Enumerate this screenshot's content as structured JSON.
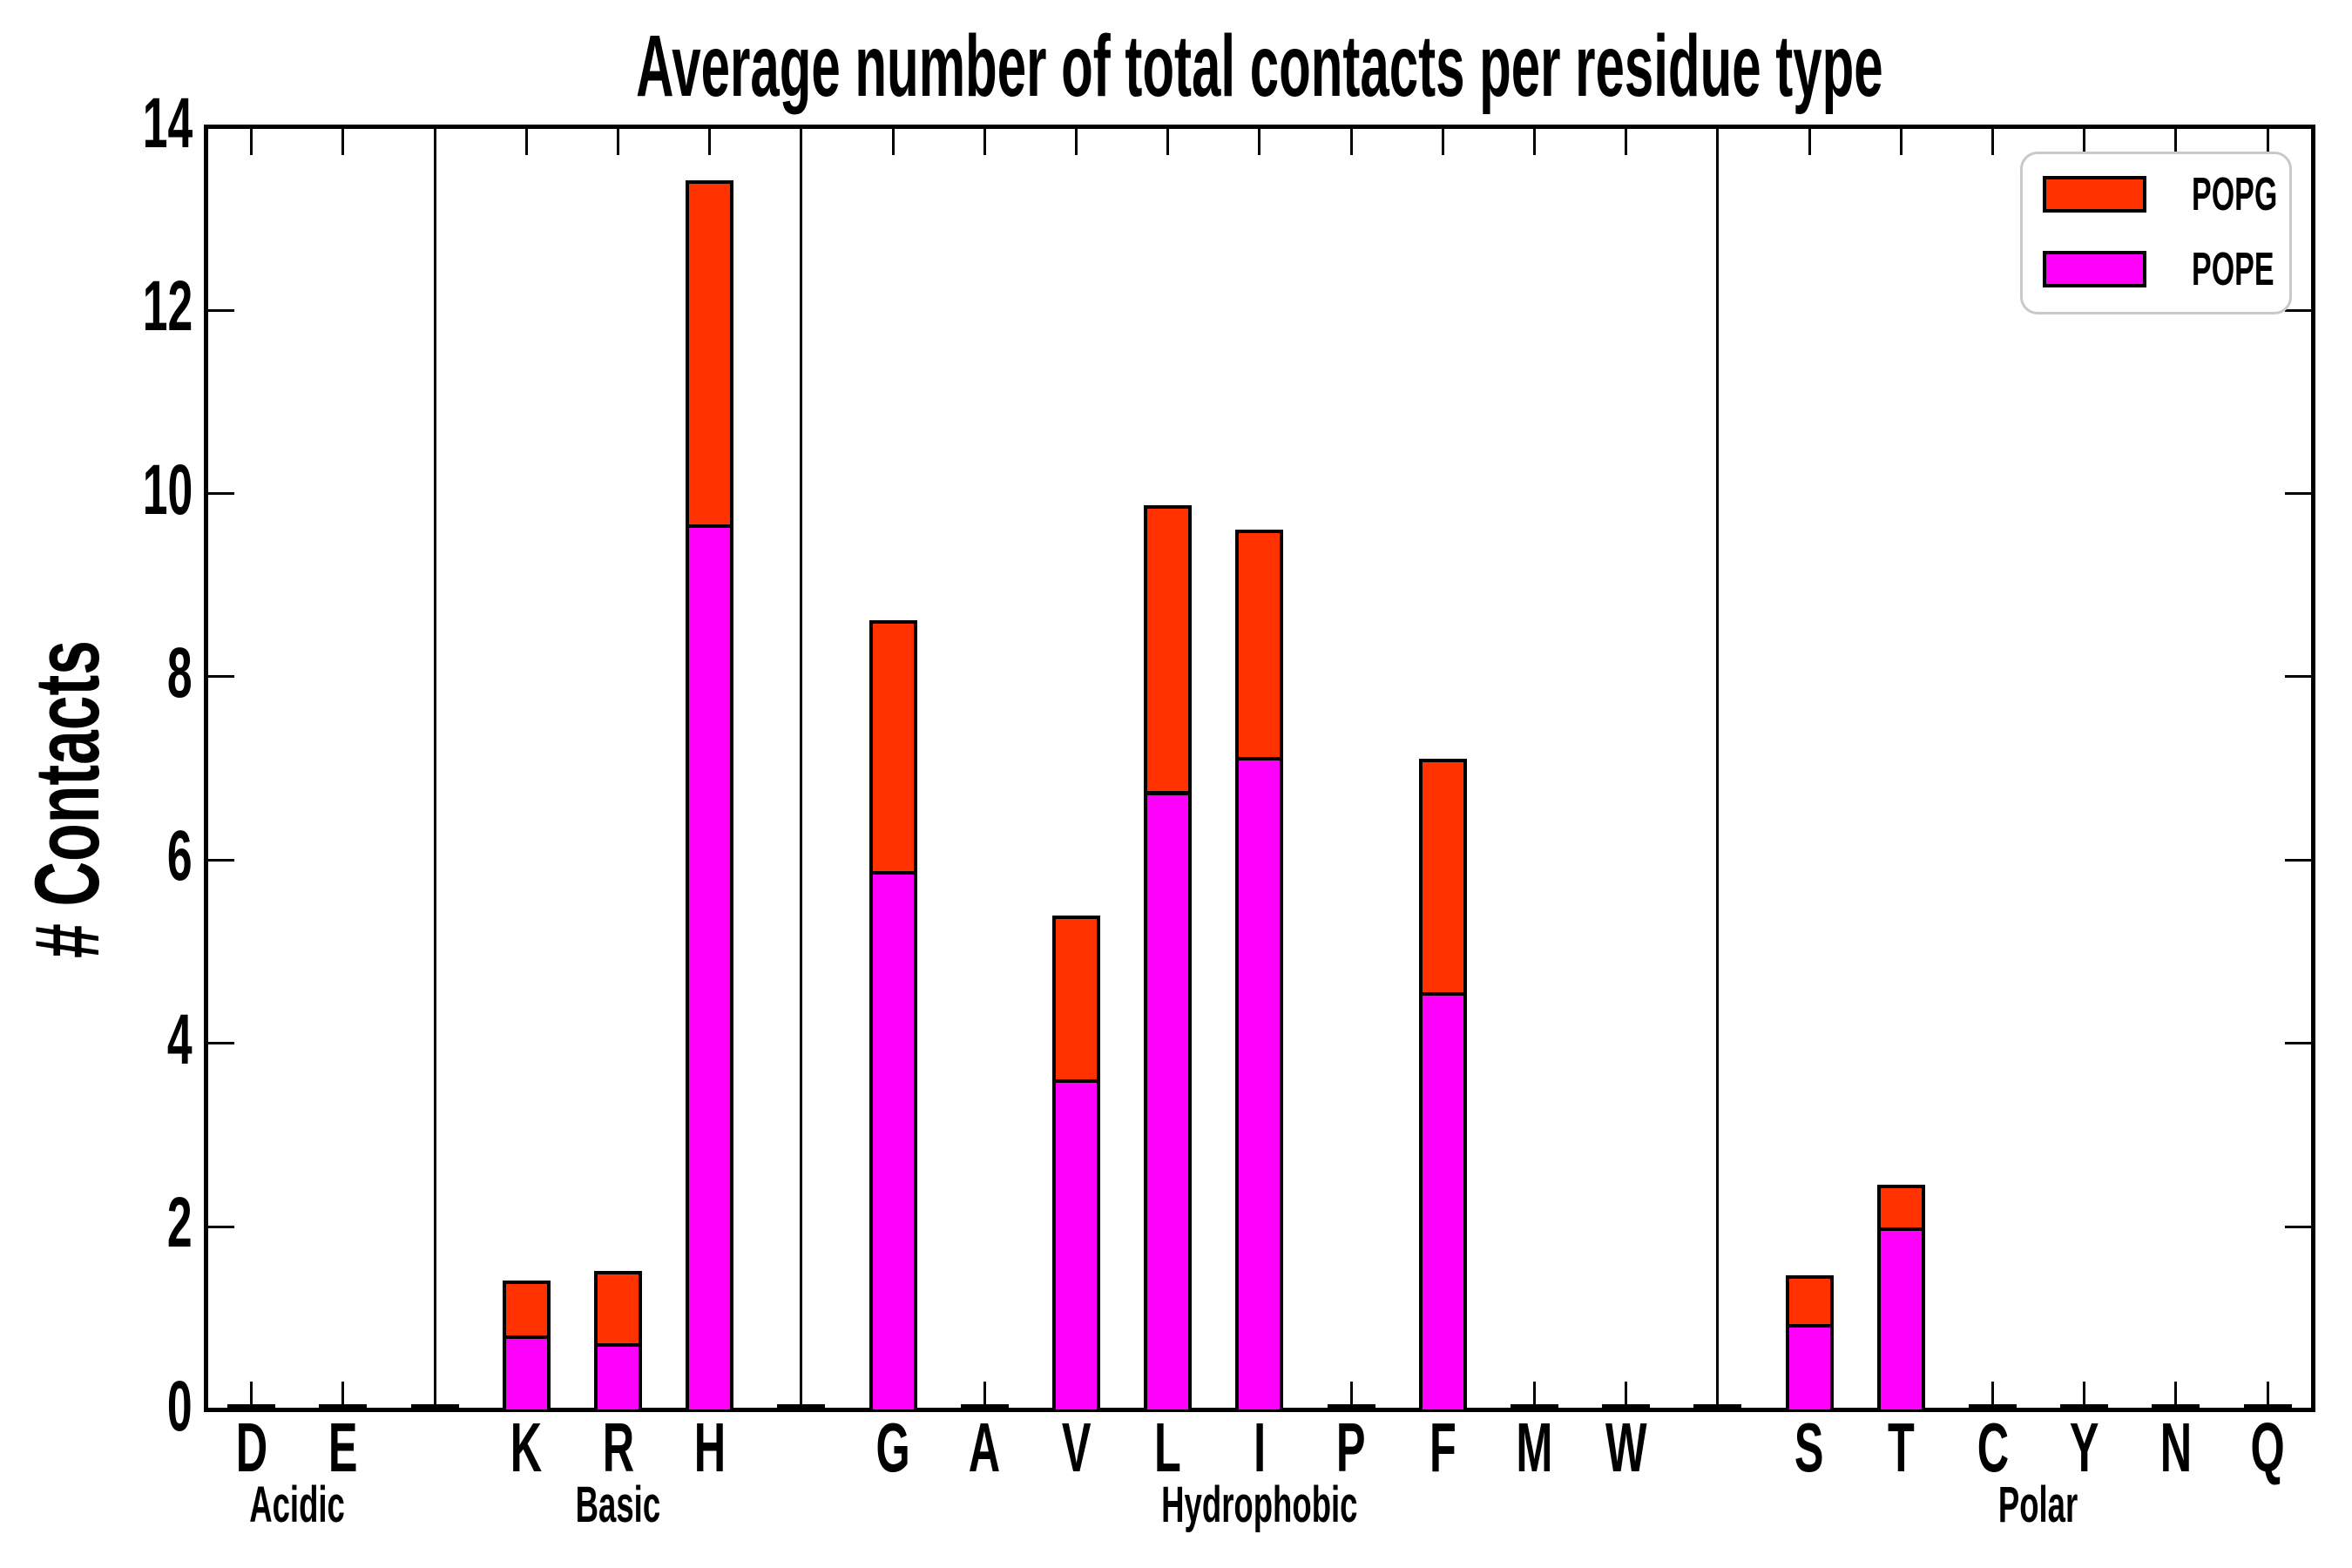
{
  "title": "Average number of total contacts per residue type",
  "y_axis": {
    "label": "# Contacts"
  },
  "legend": {
    "items": [
      {
        "label": "POPG",
        "color": "#FF3200"
      },
      {
        "label": "POPE",
        "color": "#FF00FA"
      }
    ]
  },
  "chart_data": {
    "type": "bar",
    "stacked": true,
    "title": "Average number of total contacts per residue type",
    "xlabel": "",
    "ylabel": "# Contacts",
    "ylim": [
      0,
      14
    ],
    "yticks": [
      0,
      2,
      4,
      6,
      8,
      10,
      12,
      14
    ],
    "grid": false,
    "legend_position": "upper right",
    "group_separators": true,
    "groups": [
      {
        "label": "Acidic",
        "categories": [
          "D",
          "E"
        ]
      },
      {
        "label": "Basic",
        "categories": [
          "K",
          "R",
          "H"
        ]
      },
      {
        "label": "Hydrophobic",
        "categories": [
          "G",
          "A",
          "V",
          "L",
          "I",
          "P",
          "F",
          "M",
          "W"
        ]
      },
      {
        "label": "Polar",
        "categories": [
          "S",
          "T",
          "C",
          "Y",
          "N",
          "Q"
        ]
      }
    ],
    "categories": [
      "D",
      "E",
      "K",
      "R",
      "H",
      "G",
      "A",
      "V",
      "L",
      "I",
      "P",
      "F",
      "M",
      "W",
      "S",
      "T",
      "C",
      "Y",
      "N",
      "Q"
    ],
    "series": [
      {
        "name": "POPE",
        "color": "#FF00FA",
        "values": [
          0,
          0,
          0.79,
          0.71,
          9.64,
          5.86,
          0,
          3.59,
          6.73,
          7.11,
          0,
          4.54,
          0,
          0,
          0.92,
          1.97,
          0,
          0,
          0,
          0
        ]
      },
      {
        "name": "POPG",
        "color": "#FF3200",
        "values": [
          0,
          0,
          0.6,
          0.79,
          3.76,
          2.74,
          0,
          1.79,
          3.12,
          2.48,
          0,
          2.55,
          0,
          0,
          0.53,
          0.47,
          0,
          0,
          0,
          0
        ]
      }
    ],
    "totals": [
      0,
      0,
      1.39,
      1.5,
      13.4,
      8.6,
      0,
      5.38,
      9.85,
      9.59,
      0,
      7.09,
      0,
      0,
      1.45,
      2.44,
      0,
      0,
      0,
      0
    ]
  }
}
